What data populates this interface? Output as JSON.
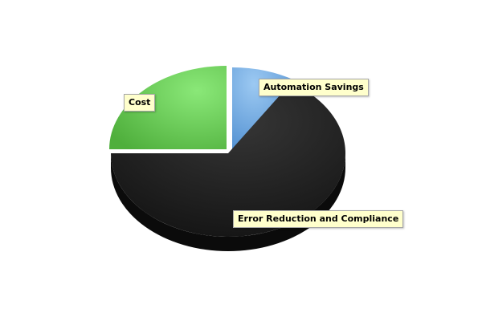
{
  "chart_data": {
    "type": "pie",
    "title": "",
    "categories": [
      "Automation Savings",
      "Error Reduction and Compliance",
      "Cost"
    ],
    "values": [
      9,
      66,
      25
    ],
    "colors": {
      "Automation Savings": "#7ab4e8",
      "Error Reduction and Compliance": "#1e1e1e",
      "Cost": "#72d35f"
    },
    "exploded": [
      "Automation Savings",
      "Cost"
    ],
    "legend": "none",
    "style": "3d"
  }
}
